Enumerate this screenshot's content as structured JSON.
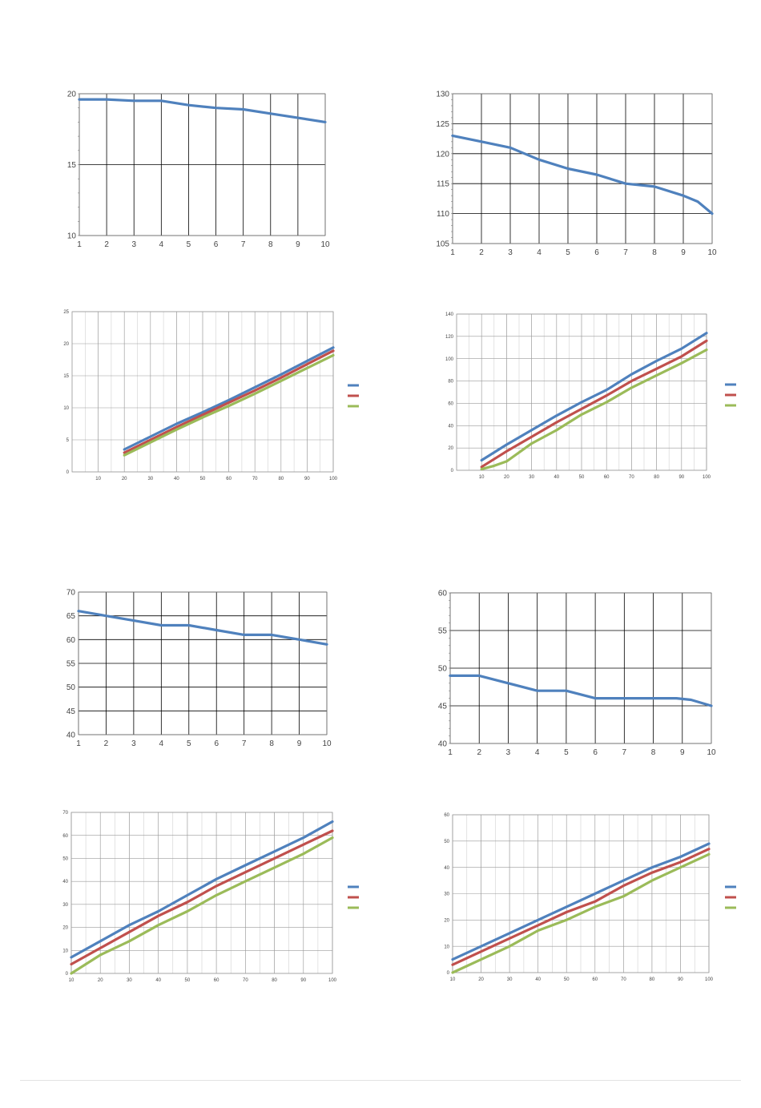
{
  "colors": {
    "series_1": "#4f81bd",
    "series_2": "#c0504d",
    "series_3": "#9bbb59",
    "grid": "#000000",
    "grid_light": "#d0d0d0",
    "axis": "#808080"
  },
  "chart_data": [
    {
      "id": "chart-1",
      "type": "line",
      "grid": "major",
      "legend": "none",
      "x": [
        1,
        2,
        3,
        4,
        5,
        6,
        7,
        8,
        9,
        10
      ],
      "xlim": [
        1,
        10
      ],
      "x_ticks": [
        "1",
        "2",
        "3",
        "4",
        "5",
        "6",
        "7",
        "8",
        "9",
        "10"
      ],
      "ylim": [
        10,
        20
      ],
      "y_ticks": [
        "10",
        "15",
        "20"
      ],
      "series": [
        {
          "points": [
            [
              1,
              19.6
            ],
            [
              2,
              19.6
            ],
            [
              3,
              19.5
            ],
            [
              3.5,
              19.5
            ],
            [
              4,
              19.5
            ],
            [
              5,
              19.2
            ],
            [
              6,
              19.0
            ],
            [
              7,
              18.9
            ],
            [
              8,
              18.6
            ],
            [
              9,
              18.3
            ],
            [
              10,
              18.0
            ]
          ]
        }
      ]
    },
    {
      "id": "chart-2",
      "type": "line",
      "grid": "major",
      "legend": "none",
      "x": [
        1,
        2,
        3,
        4,
        5,
        6,
        7,
        8,
        9,
        10
      ],
      "xlim": [
        1,
        10
      ],
      "x_ticks": [
        "1",
        "2",
        "3",
        "4",
        "5",
        "6",
        "7",
        "8",
        "9",
        "10"
      ],
      "ylim": [
        105,
        130
      ],
      "y_ticks": [
        "105",
        "110",
        "115",
        "120",
        "125",
        "130"
      ],
      "series": [
        {
          "points": [
            [
              1,
              123
            ],
            [
              2,
              122
            ],
            [
              3,
              121
            ],
            [
              4,
              119
            ],
            [
              5,
              117.5
            ],
            [
              6,
              116.5
            ],
            [
              7,
              115
            ],
            [
              8,
              114.5
            ],
            [
              9,
              113
            ],
            [
              9.5,
              112
            ],
            [
              10,
              110
            ]
          ]
        }
      ]
    },
    {
      "id": "chart-3",
      "type": "line",
      "grid": "major-minor",
      "legend": "right",
      "xlim": [
        0,
        100
      ],
      "x_ticks": [
        "10",
        "20",
        "30",
        "40",
        "50",
        "60",
        "70",
        "80",
        "90",
        "100"
      ],
      "ylim": [
        0,
        25
      ],
      "y_ticks": [
        "0",
        "5",
        "10",
        "15",
        "20",
        "25"
      ],
      "series": [
        {
          "points": [
            [
              20,
              3.5
            ],
            [
              30,
              5.5
            ],
            [
              40,
              7.5
            ],
            [
              50,
              9.3
            ],
            [
              60,
              11.2
            ],
            [
              70,
              13.2
            ],
            [
              80,
              15.2
            ],
            [
              90,
              17.3
            ],
            [
              100,
              19.4
            ]
          ]
        },
        {
          "points": [
            [
              20,
              3.0
            ],
            [
              30,
              5.0
            ],
            [
              40,
              7.0
            ],
            [
              50,
              8.9
            ],
            [
              60,
              10.8
            ],
            [
              70,
              12.7
            ],
            [
              80,
              14.7
            ],
            [
              90,
              16.8
            ],
            [
              100,
              18.9
            ]
          ]
        },
        {
          "points": [
            [
              20,
              2.6
            ],
            [
              30,
              4.6
            ],
            [
              40,
              6.6
            ],
            [
              50,
              8.5
            ],
            [
              60,
              10.3
            ],
            [
              70,
              12.2
            ],
            [
              80,
              14.2
            ],
            [
              90,
              16.2
            ],
            [
              100,
              18.2
            ]
          ]
        }
      ]
    },
    {
      "id": "chart-4",
      "type": "line",
      "grid": "major-minor",
      "legend": "right",
      "xlim": [
        0,
        100
      ],
      "x_ticks": [
        "10",
        "20",
        "30",
        "40",
        "50",
        "60",
        "70",
        "80",
        "90",
        "100"
      ],
      "ylim": [
        0,
        140
      ],
      "y_ticks": [
        "0",
        "20",
        "40",
        "60",
        "80",
        "100",
        "120",
        "140"
      ],
      "series": [
        {
          "points": [
            [
              10,
              9
            ],
            [
              20,
              23
            ],
            [
              30,
              36
            ],
            [
              40,
              49
            ],
            [
              50,
              61
            ],
            [
              60,
              72
            ],
            [
              70,
              86
            ],
            [
              80,
              98
            ],
            [
              90,
              109
            ],
            [
              100,
              123
            ]
          ]
        },
        {
          "points": [
            [
              10,
              3
            ],
            [
              20,
              17
            ],
            [
              30,
              30
            ],
            [
              40,
              43
            ],
            [
              50,
              55
            ],
            [
              60,
              67
            ],
            [
              70,
              80
            ],
            [
              80,
              91
            ],
            [
              90,
              102
            ],
            [
              100,
              116
            ]
          ]
        },
        {
          "points": [
            [
              10,
              1
            ],
            [
              15,
              4
            ],
            [
              20,
              8
            ],
            [
              30,
              24
            ],
            [
              40,
              36
            ],
            [
              50,
              50
            ],
            [
              60,
              61
            ],
            [
              70,
              74
            ],
            [
              80,
              85
            ],
            [
              90,
              96
            ],
            [
              100,
              108
            ]
          ]
        }
      ]
    },
    {
      "id": "chart-5",
      "type": "line",
      "grid": "major",
      "legend": "none",
      "x": [
        1,
        2,
        3,
        4,
        5,
        6,
        7,
        8,
        9,
        10
      ],
      "xlim": [
        1,
        10
      ],
      "x_ticks": [
        "1",
        "2",
        "3",
        "4",
        "5",
        "6",
        "7",
        "8",
        "9",
        "10"
      ],
      "ylim": [
        40,
        70
      ],
      "y_ticks": [
        "40",
        "45",
        "50",
        "55",
        "60",
        "65",
        "70"
      ],
      "series": [
        {
          "points": [
            [
              1,
              66
            ],
            [
              2,
              65
            ],
            [
              3,
              64
            ],
            [
              4,
              63
            ],
            [
              5,
              63
            ],
            [
              6,
              62
            ],
            [
              7,
              61
            ],
            [
              8,
              61
            ],
            [
              9,
              60
            ],
            [
              10,
              59
            ]
          ]
        }
      ]
    },
    {
      "id": "chart-6",
      "type": "line",
      "grid": "major",
      "legend": "none",
      "x": [
        1,
        2,
        3,
        4,
        5,
        6,
        7,
        8,
        9,
        10
      ],
      "xlim": [
        1,
        10
      ],
      "x_ticks": [
        "1",
        "2",
        "3",
        "4",
        "5",
        "6",
        "7",
        "8",
        "9",
        "10"
      ],
      "ylim": [
        40,
        60
      ],
      "y_ticks": [
        "40",
        "45",
        "50",
        "55",
        "60"
      ],
      "series": [
        {
          "points": [
            [
              1,
              49
            ],
            [
              2,
              49
            ],
            [
              3,
              48
            ],
            [
              4,
              47
            ],
            [
              5,
              47
            ],
            [
              6,
              46
            ],
            [
              7,
              46
            ],
            [
              8,
              46
            ],
            [
              8.8,
              46
            ],
            [
              9.3,
              45.8
            ],
            [
              10,
              45
            ]
          ]
        }
      ]
    },
    {
      "id": "chart-7",
      "type": "line",
      "grid": "major-minor",
      "legend": "right",
      "xlim": [
        10,
        100
      ],
      "x_ticks": [
        "10",
        "20",
        "30",
        "40",
        "50",
        "60",
        "70",
        "80",
        "90",
        "100"
      ],
      "ylim": [
        0,
        70
      ],
      "y_ticks": [
        "0",
        "10",
        "20",
        "30",
        "40",
        "50",
        "60",
        "70"
      ],
      "series": [
        {
          "points": [
            [
              10,
              7
            ],
            [
              20,
              14
            ],
            [
              30,
              21
            ],
            [
              40,
              27
            ],
            [
              50,
              34
            ],
            [
              60,
              41
            ],
            [
              70,
              47
            ],
            [
              80,
              53
            ],
            [
              90,
              59
            ],
            [
              100,
              66
            ]
          ]
        },
        {
          "points": [
            [
              10,
              4
            ],
            [
              20,
              11
            ],
            [
              30,
              18
            ],
            [
              40,
              25
            ],
            [
              50,
              31
            ],
            [
              60,
              38
            ],
            [
              70,
              44
            ],
            [
              80,
              50
            ],
            [
              90,
              56
            ],
            [
              100,
              62
            ]
          ]
        },
        {
          "points": [
            [
              10,
              0
            ],
            [
              20,
              8
            ],
            [
              30,
              14
            ],
            [
              40,
              21
            ],
            [
              50,
              27
            ],
            [
              60,
              34
            ],
            [
              70,
              40
            ],
            [
              80,
              46
            ],
            [
              90,
              52
            ],
            [
              100,
              59
            ]
          ]
        }
      ]
    },
    {
      "id": "chart-8",
      "type": "line",
      "grid": "major-minor",
      "legend": "right",
      "xlim": [
        10,
        100
      ],
      "x_ticks": [
        "10",
        "20",
        "30",
        "40",
        "50",
        "60",
        "70",
        "80",
        "90",
        "100"
      ],
      "ylim": [
        0,
        60
      ],
      "y_ticks": [
        "0",
        "10",
        "20",
        "30",
        "40",
        "50",
        "60"
      ],
      "series": [
        {
          "points": [
            [
              10,
              5
            ],
            [
              20,
              10
            ],
            [
              30,
              15
            ],
            [
              40,
              20
            ],
            [
              50,
              25
            ],
            [
              60,
              30
            ],
            [
              70,
              35
            ],
            [
              80,
              40
            ],
            [
              90,
              44
            ],
            [
              100,
              49
            ]
          ]
        },
        {
          "points": [
            [
              10,
              3
            ],
            [
              20,
              8
            ],
            [
              30,
              13
            ],
            [
              40,
              18
            ],
            [
              50,
              23
            ],
            [
              60,
              27
            ],
            [
              70,
              33
            ],
            [
              80,
              38
            ],
            [
              90,
              42
            ],
            [
              100,
              47
            ]
          ]
        },
        {
          "points": [
            [
              10,
              0
            ],
            [
              20,
              5
            ],
            [
              30,
              10
            ],
            [
              40,
              16
            ],
            [
              50,
              20
            ],
            [
              60,
              25
            ],
            [
              70,
              29
            ],
            [
              80,
              35
            ],
            [
              90,
              40
            ],
            [
              100,
              45
            ]
          ]
        }
      ]
    }
  ]
}
